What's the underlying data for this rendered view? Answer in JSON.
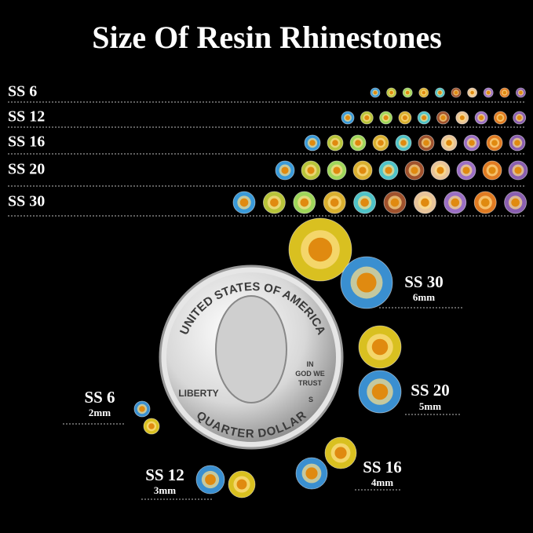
{
  "title": "Size Of Resin Rhinestones",
  "rows": [
    {
      "label": "SS 6"
    },
    {
      "label": "SS 12"
    },
    {
      "label": "SS 16"
    },
    {
      "label": "SS 20"
    },
    {
      "label": "SS 30"
    }
  ],
  "coin": {
    "top": "UNITED STATES OF AMERICA",
    "bottom": "QUARTER DOLLAR",
    "liberty": "LIBERTY",
    "motto": [
      "IN",
      "GOD WE",
      "TRUST"
    ],
    "mint": "S"
  },
  "callouts": [
    {
      "label": "SS 30",
      "size": "6mm"
    },
    {
      "label": "SS 20",
      "size": "5mm"
    },
    {
      "label": "SS 16",
      "size": "4mm"
    },
    {
      "label": "SS 12",
      "size": "3mm"
    },
    {
      "label": "SS 6",
      "size": "2mm"
    }
  ]
}
